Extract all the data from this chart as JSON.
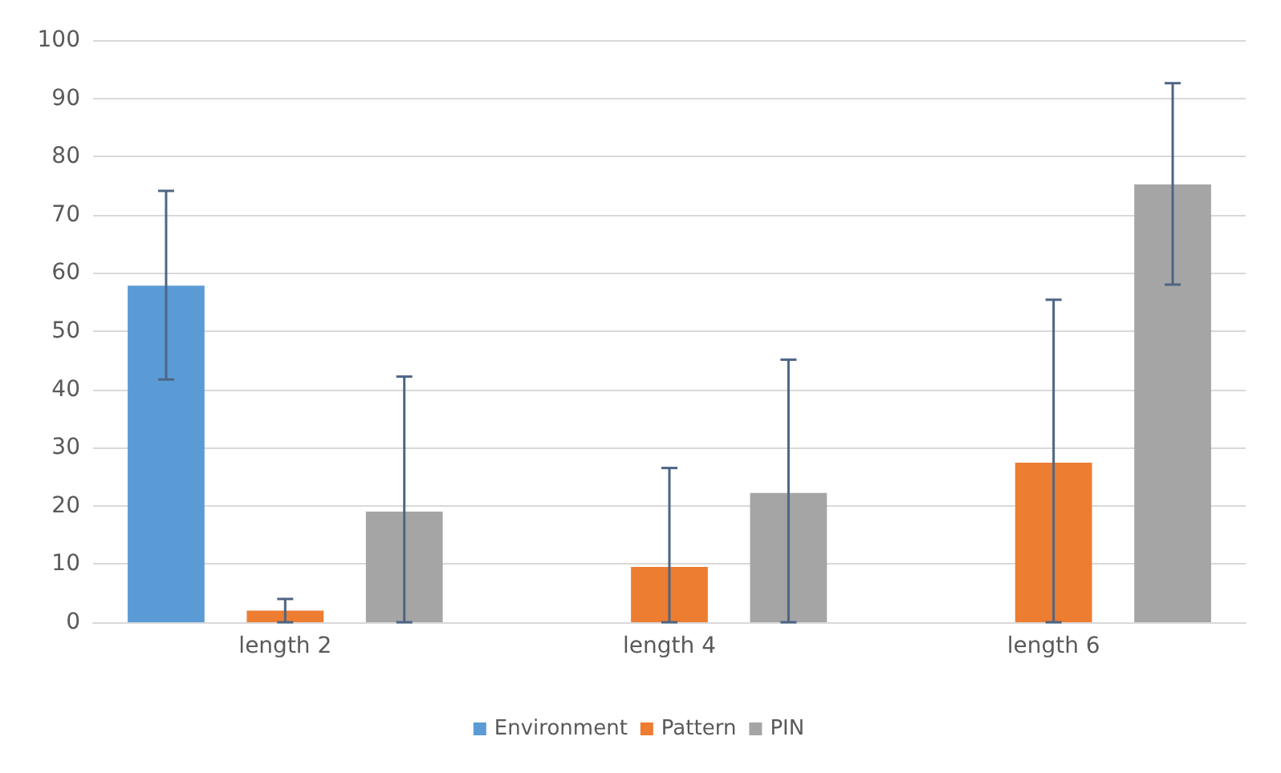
{
  "chart_data": {
    "type": "bar",
    "categories": [
      "length 2",
      "length 4",
      "length 6"
    ],
    "series": [
      {
        "name": "Environment",
        "color": "#5b9bd5",
        "values": [
          57.8,
          null,
          null
        ],
        "errors": [
          [
            41.7,
            74.1
          ],
          null,
          null
        ]
      },
      {
        "name": "Pattern",
        "color": "#ed7d31",
        "values": [
          2,
          9.5,
          27.4
        ],
        "errors": [
          [
            0,
            4
          ],
          [
            0,
            26.5
          ],
          [
            0,
            55.4
          ]
        ]
      },
      {
        "name": "PIN",
        "color": "#a5a5a5",
        "values": [
          19,
          22.2,
          75.2
        ],
        "errors": [
          [
            0,
            42.2
          ],
          [
            0,
            45.1
          ],
          [
            58,
            92.6
          ]
        ]
      }
    ],
    "ylim": [
      0,
      100
    ],
    "yticks": [
      0,
      10,
      20,
      30,
      40,
      50,
      60,
      70,
      80,
      90,
      100
    ],
    "grid": "y",
    "legend": "bottom"
  }
}
